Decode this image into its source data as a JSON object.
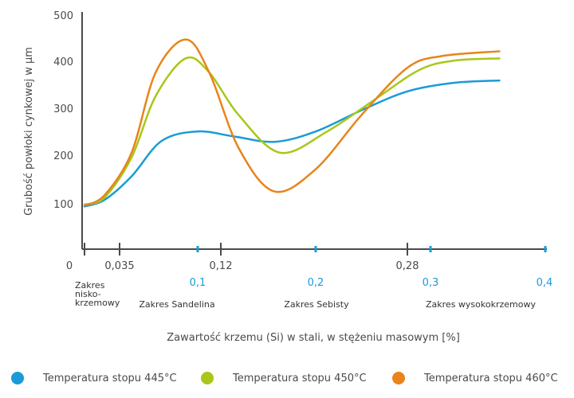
{
  "chart_data": {
    "type": "line",
    "ylabel": "Grubość powłoki cynkowej w µm",
    "xlabel": "Zawartość krzemu (Si) w stali, w stężeniu masowym [%]",
    "y_ticks": [
      100,
      200,
      300,
      400,
      500
    ],
    "x_ticks_black": [
      "0",
      "0,035",
      "0,12",
      "0,28"
    ],
    "x_ticks_blue": [
      "0,1",
      "0,2",
      "0,3",
      "0,4"
    ],
    "zones": [
      "Zakres nisko- krzemowy",
      "Zakres Sandelina",
      "Zakres Sebisty",
      "Zakres wysokokrzemowy"
    ],
    "zone_low_lines": [
      "Zakres",
      "nisko-",
      "krzemowy"
    ],
    "ylim": [
      0,
      500
    ],
    "series": [
      {
        "name": "Temperatura stopu 445°C",
        "color": "#1a9bd7",
        "points": [
          [
            0,
            96
          ],
          [
            0.02,
            110
          ],
          [
            0.045,
            160
          ],
          [
            0.07,
            235
          ],
          [
            0.1,
            255
          ],
          [
            0.13,
            245
          ],
          [
            0.165,
            233
          ],
          [
            0.2,
            255
          ],
          [
            0.24,
            300
          ],
          [
            0.28,
            340
          ],
          [
            0.32,
            358
          ],
          [
            0.36,
            363
          ]
        ]
      },
      {
        "name": "Temperatura stopu 450°C",
        "color": "#a8c71a",
        "points": [
          [
            0,
            100
          ],
          [
            0.02,
            115
          ],
          [
            0.045,
            200
          ],
          [
            0.065,
            330
          ],
          [
            0.09,
            410
          ],
          [
            0.11,
            380
          ],
          [
            0.135,
            290
          ],
          [
            0.17,
            210
          ],
          [
            0.21,
            255
          ],
          [
            0.25,
            320
          ],
          [
            0.29,
            385
          ],
          [
            0.32,
            405
          ],
          [
            0.36,
            410
          ]
        ]
      },
      {
        "name": "Temperatura stopu 460°C",
        "color": "#e8841a",
        "points": [
          [
            0,
            98
          ],
          [
            0.02,
            120
          ],
          [
            0.045,
            210
          ],
          [
            0.065,
            380
          ],
          [
            0.09,
            450
          ],
          [
            0.11,
            380
          ],
          [
            0.135,
            220
          ],
          [
            0.165,
            128
          ],
          [
            0.2,
            175
          ],
          [
            0.24,
            290
          ],
          [
            0.28,
            390
          ],
          [
            0.31,
            415
          ],
          [
            0.36,
            425
          ]
        ]
      }
    ]
  },
  "legend": {
    "items": [
      {
        "label": "Temperatura stopu 445°C",
        "color": "#1a9bd7"
      },
      {
        "label": "Temperatura stopu 450°C",
        "color": "#a8c71a"
      },
      {
        "label": "Temperatura stopu 460°C",
        "color": "#e8841a"
      }
    ]
  }
}
